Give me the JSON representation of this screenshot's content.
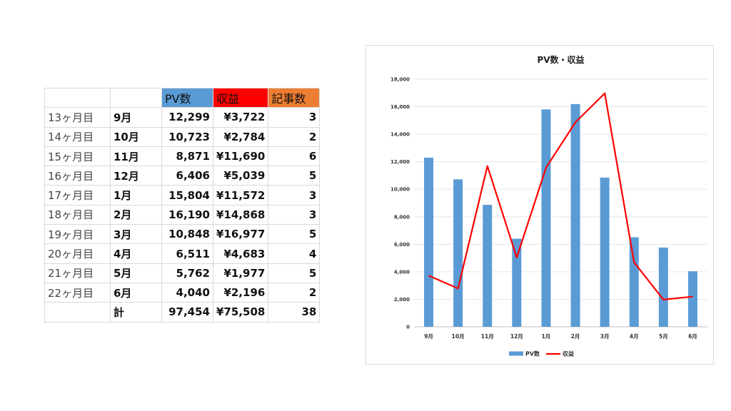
{
  "table": {
    "headers": [
      "",
      "",
      "PV数",
      "収益",
      "記事数"
    ],
    "rows": [
      {
        "label": "13ヶ月目",
        "month": "9月",
        "pv": "12,299",
        "revenue": "¥3,722",
        "articles": "3"
      },
      {
        "label": "14ヶ月目",
        "month": "10月",
        "pv": "10,723",
        "revenue": "¥2,784",
        "articles": "2"
      },
      {
        "label": "15ヶ月目",
        "month": "11月",
        "pv": "8,871",
        "revenue": "¥11,690",
        "articles": "6"
      },
      {
        "label": "16ヶ月目",
        "month": "12月",
        "pv": "6,406",
        "revenue": "¥5,039",
        "articles": "5"
      },
      {
        "label": "17ヶ月目",
        "month": "1月",
        "pv": "15,804",
        "revenue": "¥11,572",
        "articles": "3"
      },
      {
        "label": "18ヶ月目",
        "month": "2月",
        "pv": "16,190",
        "revenue": "¥14,868",
        "articles": "3"
      },
      {
        "label": "19ヶ月目",
        "month": "3月",
        "pv": "10,848",
        "revenue": "¥16,977",
        "articles": "5"
      },
      {
        "label": "20ヶ月目",
        "month": "4月",
        "pv": "6,511",
        "revenue": "¥4,683",
        "articles": "4"
      },
      {
        "label": "21ヶ月目",
        "month": "5月",
        "pv": "5,762",
        "revenue": "¥1,977",
        "articles": "5"
      },
      {
        "label": "22ヶ月目",
        "month": "6月",
        "pv": "4,040",
        "revenue": "¥2,196",
        "articles": "2"
      }
    ],
    "total": {
      "label": "",
      "month": "計",
      "pv": "97,454",
      "revenue": "¥75,508",
      "articles": "38"
    },
    "colors": {
      "pv_header": "#5b9bd5",
      "revenue_header": "#ff0000",
      "articles_header": "#ed7d31"
    }
  },
  "chart_data": {
    "type": "bar",
    "title": "PV数・収益",
    "categories": [
      "9月",
      "10月",
      "11月",
      "12月",
      "1月",
      "2月",
      "3月",
      "4月",
      "5月",
      "6月"
    ],
    "series": [
      {
        "name": "PV数",
        "type": "bar",
        "color": "#5b9bd5",
        "values": [
          12299,
          10723,
          8871,
          6406,
          15804,
          16190,
          10848,
          6511,
          5762,
          4040
        ]
      },
      {
        "name": "収益",
        "type": "line",
        "color": "#ff0000",
        "values": [
          3722,
          2784,
          11690,
          5039,
          11572,
          14868,
          16977,
          4683,
          1977,
          2196
        ]
      }
    ],
    "ylim": [
      0,
      18000
    ],
    "yticks": [
      0,
      2000,
      4000,
      6000,
      8000,
      10000,
      12000,
      14000,
      16000,
      18000
    ],
    "ytick_labels": [
      "0",
      "2,000",
      "4,000",
      "6,000",
      "8,000",
      "10,000",
      "12,000",
      "14,000",
      "16,000",
      "18,000"
    ],
    "grid": true,
    "legend_position": "bottom"
  }
}
